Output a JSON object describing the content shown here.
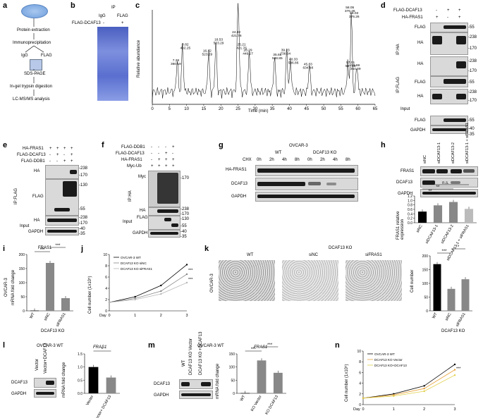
{
  "panels": {
    "a": {
      "label": "a",
      "steps": [
        "Protein extraction",
        "Immunoprecipitation",
        "IgG",
        "FLAG",
        "SDS-PAGE",
        "In-gel trypsin digestion",
        "LC-MS/MS analysis"
      ]
    },
    "b": {
      "label": "b",
      "ip": "IP",
      "cols": [
        "IgG",
        "FLAG"
      ],
      "row": "FLAG-DCAF13",
      "marks": [
        "-",
        "+"
      ]
    },
    "c": {
      "label": "c",
      "ylabel": "Relative abundance",
      "xlabel": "Time (min)",
      "xticks": [
        "0",
        "5",
        "10",
        "15",
        "20",
        "25",
        "30",
        "35",
        "40",
        "45",
        "50",
        "55",
        "60",
        "65"
      ],
      "peaks": [
        [
          "7.28",
          "360.19"
        ],
        [
          "8.82",
          "402.25"
        ],
        [
          "16.42",
          "523.29"
        ],
        [
          "18.53",
          "523.29"
        ],
        [
          "24.92",
          "421.76"
        ],
        [
          "25.21",
          "421.76"
        ],
        [
          "28.29",
          "449.27"
        ],
        [
          "35.65",
          "588.85"
        ],
        [
          "39.23",
          "738.04"
        ],
        [
          "40.33",
          "586.86"
        ],
        [
          "45.83",
          "634.88"
        ],
        [
          "57.01",
          "587.19"
        ],
        [
          "58.05",
          "376.26"
        ],
        [
          "58.03",
          "376.26"
        ],
        [
          "59.69",
          "354.09"
        ]
      ]
    },
    "d": {
      "label": "d",
      "rows": [
        "FLAG-DCAF13",
        "HA-FRAS1"
      ],
      "marks": [
        [
          "-",
          "+",
          "+"
        ],
        [
          "+",
          "-",
          "+"
        ]
      ],
      "blots": [
        "FLAG",
        "HA",
        "HA",
        "FLAG",
        "HA",
        "FLAG",
        "GAPDH"
      ],
      "groups": [
        "IP:HA",
        "IP:FLAG",
        "Input"
      ],
      "mw": [
        "-55",
        "-238",
        "-170",
        "-238",
        "-170",
        "-55",
        "-238",
        "-170",
        "-55",
        "-40",
        "-35"
      ]
    },
    "e": {
      "label": "e",
      "rows": [
        "HA-FRAS1",
        "FLAG-DCAF13",
        "FLAG-DDB1"
      ],
      "marks": [
        [
          "+",
          "+",
          "+",
          "+"
        ],
        [
          "-",
          "+",
          "-",
          "+"
        ],
        [
          "-",
          "-",
          "+",
          "+"
        ]
      ],
      "blots": [
        "HA",
        "FLAG",
        "HA",
        "GAPDH"
      ],
      "groups": [
        "IP:FLAG",
        "Input"
      ],
      "mw": [
        "-238",
        "-170",
        "-130",
        "-55",
        "-238",
        "-170",
        "-40",
        "-35"
      ]
    },
    "f": {
      "label": "f",
      "rows": [
        "FLAG-DDB1",
        "FLAG-DCAF13",
        "HA-FRAS1",
        "Myc-Ub"
      ],
      "marks": [
        [
          "-",
          "-",
          "-",
          "+"
        ],
        [
          "-",
          "-",
          "+",
          "-"
        ],
        [
          "-",
          "+",
          "+",
          "+"
        ],
        [
          "+",
          "+",
          "+",
          "+"
        ]
      ],
      "blots": [
        "Myc",
        "HA",
        "FLAG",
        "GAPDH"
      ],
      "groups": [
        "IP:HA",
        "Input"
      ],
      "mw": [
        "-170",
        "-238",
        "-170",
        "-130",
        "-55",
        "-40",
        "-35"
      ]
    },
    "g": {
      "label": "g",
      "cell": "OVCAR-3",
      "groups": [
        "WT",
        "DCAF13 KO"
      ],
      "chx": "CHX",
      "times": [
        "0h",
        "2h",
        "4h",
        "8h",
        "0h",
        "2h",
        "4h",
        "8h"
      ],
      "blots": [
        "HA-FRAS1",
        "DCAF13",
        "GAPDH"
      ]
    },
    "h": {
      "label": "h",
      "cols": [
        "siNC",
        "siDCAF13-1",
        "siDCAF13-2",
        "siDCAF13-1 + siFRAS1"
      ],
      "blots": [
        "FRAS1",
        "DCAF13",
        "GAPDH"
      ],
      "ylabel": "FRAS1 relative expression",
      "yticks": [
        "0.0",
        "0.2",
        "0.4",
        "0.6",
        "0.8",
        "1.0",
        "1.2"
      ],
      "sig": [
        "**",
        "**",
        "n.s."
      ],
      "chart_data": {
        "type": "bar",
        "categories": [
          "siNC",
          "siDCAF13-1",
          "siDCAF13-2",
          "siDCAF13-1 + siFRAS1"
        ],
        "values": [
          0.5,
          0.78,
          0.93,
          0.62
        ],
        "ylabel": "FRAS1 relative expression",
        "ylim": [
          0,
          1.2
        ]
      }
    },
    "i": {
      "label": "i",
      "title": "FRAS1",
      "ylabel": "mRNA fold change",
      "side": "OVCAR-3",
      "yticks": [
        "0",
        "50",
        "100",
        "150",
        "200"
      ],
      "cats": [
        "WT",
        "siNC",
        "siFRAS1"
      ],
      "group": "DCAF13 KO",
      "sig": [
        "***",
        "***"
      ],
      "chart_data": {
        "type": "bar",
        "categories": [
          "WT",
          "siNC",
          "siFRAS1"
        ],
        "values": [
          1,
          170,
          45
        ],
        "ylabel": "mRNA fold change",
        "ylim": [
          0,
          200
        ]
      }
    },
    "j": {
      "label": "j",
      "ylabel": "Cell number (1x10⁵)",
      "xlabel": "Day",
      "xticks": [
        "0",
        "1",
        "2",
        "3"
      ],
      "yticks": [
        "0",
        "2",
        "4",
        "6",
        "8",
        "10"
      ],
      "legend": [
        "OVCAR-3 WT",
        "DCAF13 KO siNC",
        "DCAF13 KO siFRAS1"
      ],
      "sig": [
        "***",
        "***"
      ],
      "chart_data": {
        "type": "line",
        "x": [
          0,
          1,
          2,
          3
        ],
        "series": [
          {
            "name": "OVCAR-3 WT",
            "values": [
              1.5,
              2.5,
              4.5,
              8.2
            ]
          },
          {
            "name": "DCAF13 KO siNC",
            "values": [
              1.5,
              2.2,
              3.5,
              6.5
            ]
          },
          {
            "name": "DCAF13 KO siFRAS1",
            "values": [
              1.5,
              2.0,
              3.0,
              5.0
            ]
          }
        ],
        "ylim": [
          0,
          10
        ]
      }
    },
    "k": {
      "label": "k",
      "side": "OVCAR-3",
      "top": "DCAF13 KO",
      "images": [
        "WT",
        "siNC",
        "siFRAS1"
      ],
      "ylabel": "Cell number",
      "yticks": [
        "0",
        "50",
        "100",
        "150",
        "200"
      ],
      "cats": [
        "WT",
        "siNC",
        "siFRAS1"
      ],
      "group": "DCAF13 KO",
      "sig": [
        "***",
        "*"
      ],
      "chart_data": {
        "type": "bar",
        "categories": [
          "WT",
          "siNC",
          "siFRAS1"
        ],
        "values": [
          170,
          80,
          115
        ],
        "ylabel": "Cell number",
        "ylim": [
          0,
          200
        ]
      }
    },
    "l": {
      "label": "l",
      "title": "OVCAR-3 WT",
      "cols": [
        "Vector",
        "Vector+DCAF13"
      ],
      "blots": [
        "DCAF13",
        "GAPDH"
      ],
      "gene": "FRAS1",
      "ylabel": "mRNA fold change",
      "yticks": [
        "0.0",
        "0.5",
        "1.0",
        "1.5"
      ],
      "cats": [
        "Vector",
        "Vector+ DCAF13"
      ],
      "sig": "*",
      "chart_data": {
        "type": "bar",
        "categories": [
          "Vector",
          "Vector+ DCAF13"
        ],
        "values": [
          1.0,
          0.6
        ],
        "ylabel": "mRNA fold change",
        "ylim": [
          0,
          1.5
        ]
      }
    },
    "m": {
      "label": "m",
      "title": "OVCAR-3 WT",
      "cols": [
        "WT",
        "DCAF13 KO Vector",
        "DCAF13 KO +DCAF13"
      ],
      "blots": [
        "DCAF13",
        "GAPDH"
      ],
      "gene": "FRAS1",
      "ylabel": "mRNA fold change",
      "yticks": [
        "0",
        "50",
        "100",
        "150"
      ],
      "cats": [
        "WT",
        "KO Vector",
        "KO DCAF13"
      ],
      "sig": [
        "***",
        "***"
      ],
      "chart_data": {
        "type": "bar",
        "categories": [
          "WT",
          "KO Vector",
          "KO DCAF13"
        ],
        "values": [
          1,
          125,
          78
        ],
        "ylabel": "mRNA fold change",
        "ylim": [
          0,
          150
        ]
      }
    },
    "n": {
      "label": "n",
      "ylabel": "Cell number (1x10⁵)",
      "xlabel": "Day",
      "xticks": [
        "0",
        "1",
        "2",
        "3"
      ],
      "yticks": [
        "0",
        "2",
        "4",
        "6",
        "8",
        "10"
      ],
      "legend": [
        "OVCAR-3 WT",
        "DCAF13 KO Vector",
        "DCAF13 KO+DCAF13"
      ],
      "sig": "***",
      "chart_data": {
        "type": "line",
        "x": [
          0,
          1,
          2,
          3
        ],
        "series": [
          {
            "name": "OVCAR-3 WT",
            "values": [
              1.2,
              2.0,
              3.5,
              7.5
            ]
          },
          {
            "name": "DCAF13 KO Vector",
            "values": [
              1.2,
              1.8,
              3.0,
              6.5
            ]
          },
          {
            "name": "DCAF13 KO+DCAF13",
            "values": [
              1.2,
              1.6,
              2.5,
              5.5
            ]
          }
        ],
        "ylim": [
          0,
          10
        ]
      }
    }
  },
  "colors": {
    "gel": "#5a6fcf",
    "line_wt": "#000000",
    "line_ko": "#888888",
    "line_ko2": "#b8b8b8",
    "n_wt": "#000000",
    "n_ko": "#e8a33c",
    "n_ko2": "#e0d04a",
    "bar_dark": "#000000",
    "bar_mid": "#888888",
    "bar_light": "#bbbbbb"
  }
}
